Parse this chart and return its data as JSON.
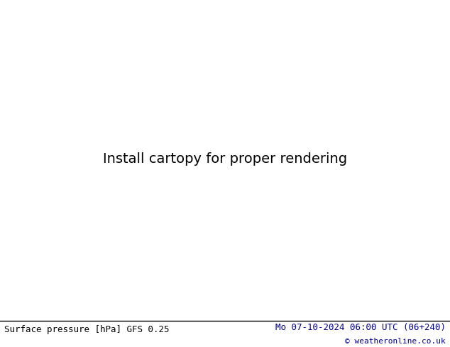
{
  "title_left": "Surface pressure [hPa] GFS 0.25",
  "title_right": "Mo 07-10-2024 06:00 UTC (06+240)",
  "copyright": "© weatheronline.co.uk",
  "bg_color": "#ffffff",
  "ocean_color": "#e8e8e8",
  "land_color": "#c8e8a0",
  "border_color": "#888888",
  "coastline_color": "#888888",
  "isobar_blue": "#0000ff",
  "isobar_red": "#ff0000",
  "isobar_black": "#000000",
  "text_color_left": "#000000",
  "text_color_right": "#00008b",
  "copyright_color": "#00008b",
  "figsize": [
    6.34,
    4.9
  ],
  "dpi": 100,
  "lon_min": -175,
  "lon_max": -50,
  "lat_min": 10,
  "lat_max": 80,
  "pressure_base": 1013.25,
  "label_fontsize": 7
}
